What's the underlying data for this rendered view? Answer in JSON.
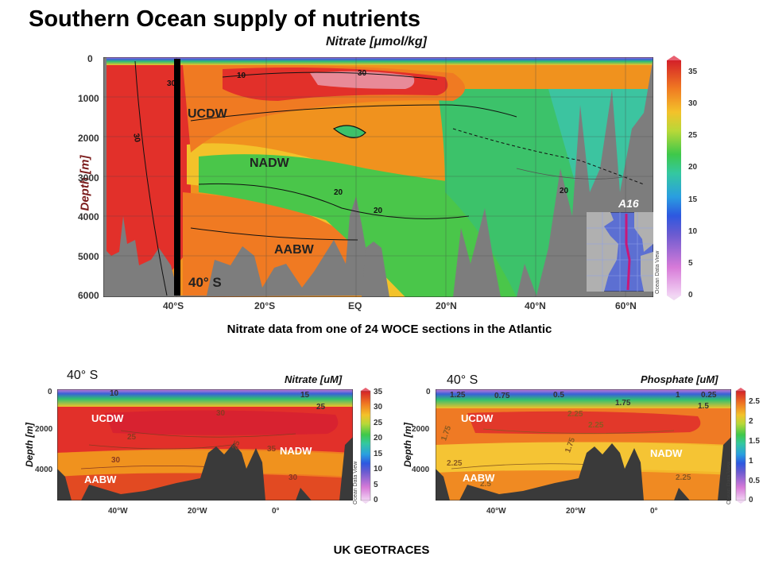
{
  "slide": {
    "title": "Southern Ocean supply of nutrients",
    "caption": "Nitrate data from one of 24 WOCE sections in the Atlantic",
    "footer": "UK GEOTRACES"
  },
  "main_plot": {
    "title": "Nitrate [μmol/kg]",
    "ylabel": "Depth [m]",
    "yticks": [
      "0",
      "1000",
      "2000",
      "3000",
      "4000",
      "5000",
      "6000"
    ],
    "xticks": [
      "40°S",
      "20°S",
      "EQ",
      "20°N",
      "40°N",
      "60°N"
    ],
    "water_masses": [
      "UCDW",
      "NADW",
      "AABW"
    ],
    "contour_labels": [
      "30",
      "30",
      "20",
      "20",
      "20",
      "30",
      "10"
    ],
    "marker_label": "40° S",
    "inset_label": "A16",
    "colorbar_ticks": [
      "35",
      "30",
      "25",
      "20",
      "15",
      "10",
      "5",
      "0"
    ],
    "odv_credit": "Ocean Data View"
  },
  "nitrate_plot": {
    "lat_label": "40° S",
    "title": "Nitrate [uM]",
    "ylabel": "Depth [m]",
    "yticks": [
      "0",
      "2000",
      "4000"
    ],
    "xticks": [
      "40°W",
      "20°W",
      "0°"
    ],
    "water_masses": [
      "UCDW",
      "NADW",
      "AABW"
    ],
    "contour_labels": [
      "10",
      "15",
      "25",
      "30",
      "25",
      "30",
      "35",
      "25",
      "30"
    ],
    "colorbar_ticks": [
      "35",
      "30",
      "25",
      "20",
      "15",
      "10",
      "5",
      "0"
    ],
    "odv_credit": "Ocean Data View"
  },
  "phosphate_plot": {
    "lat_label": "40° S",
    "title": "Phosphate [uM]",
    "ylabel": "Depth [m]",
    "yticks": [
      "0",
      "2000",
      "4000"
    ],
    "xticks": [
      "40°W",
      "20°W",
      "0°"
    ],
    "water_masses": [
      "UCDW",
      "NADW",
      "AABW"
    ],
    "contour_labels": [
      "1.25",
      "0.75",
      "0.5",
      "1.75",
      "1",
      "0.25",
      "1.5",
      "2.25",
      "2.25",
      "1.75",
      "2.25",
      "1.75",
      "2.5",
      "2.25"
    ],
    "colorbar_ticks": [
      "2.5",
      "2",
      "1.5",
      "1",
      "0.5",
      "0"
    ],
    "odv_credit": "Ocean Data View"
  },
  "colors": {
    "bathymetry": "#7d7d7d",
    "dark_bathymetry": "#3a3a3a",
    "high_nitrate": "#d4202a",
    "mid_nitrate": "#f0921e",
    "low_nitrate": "#2ec44a",
    "surface_low": "#2a5fd0"
  }
}
